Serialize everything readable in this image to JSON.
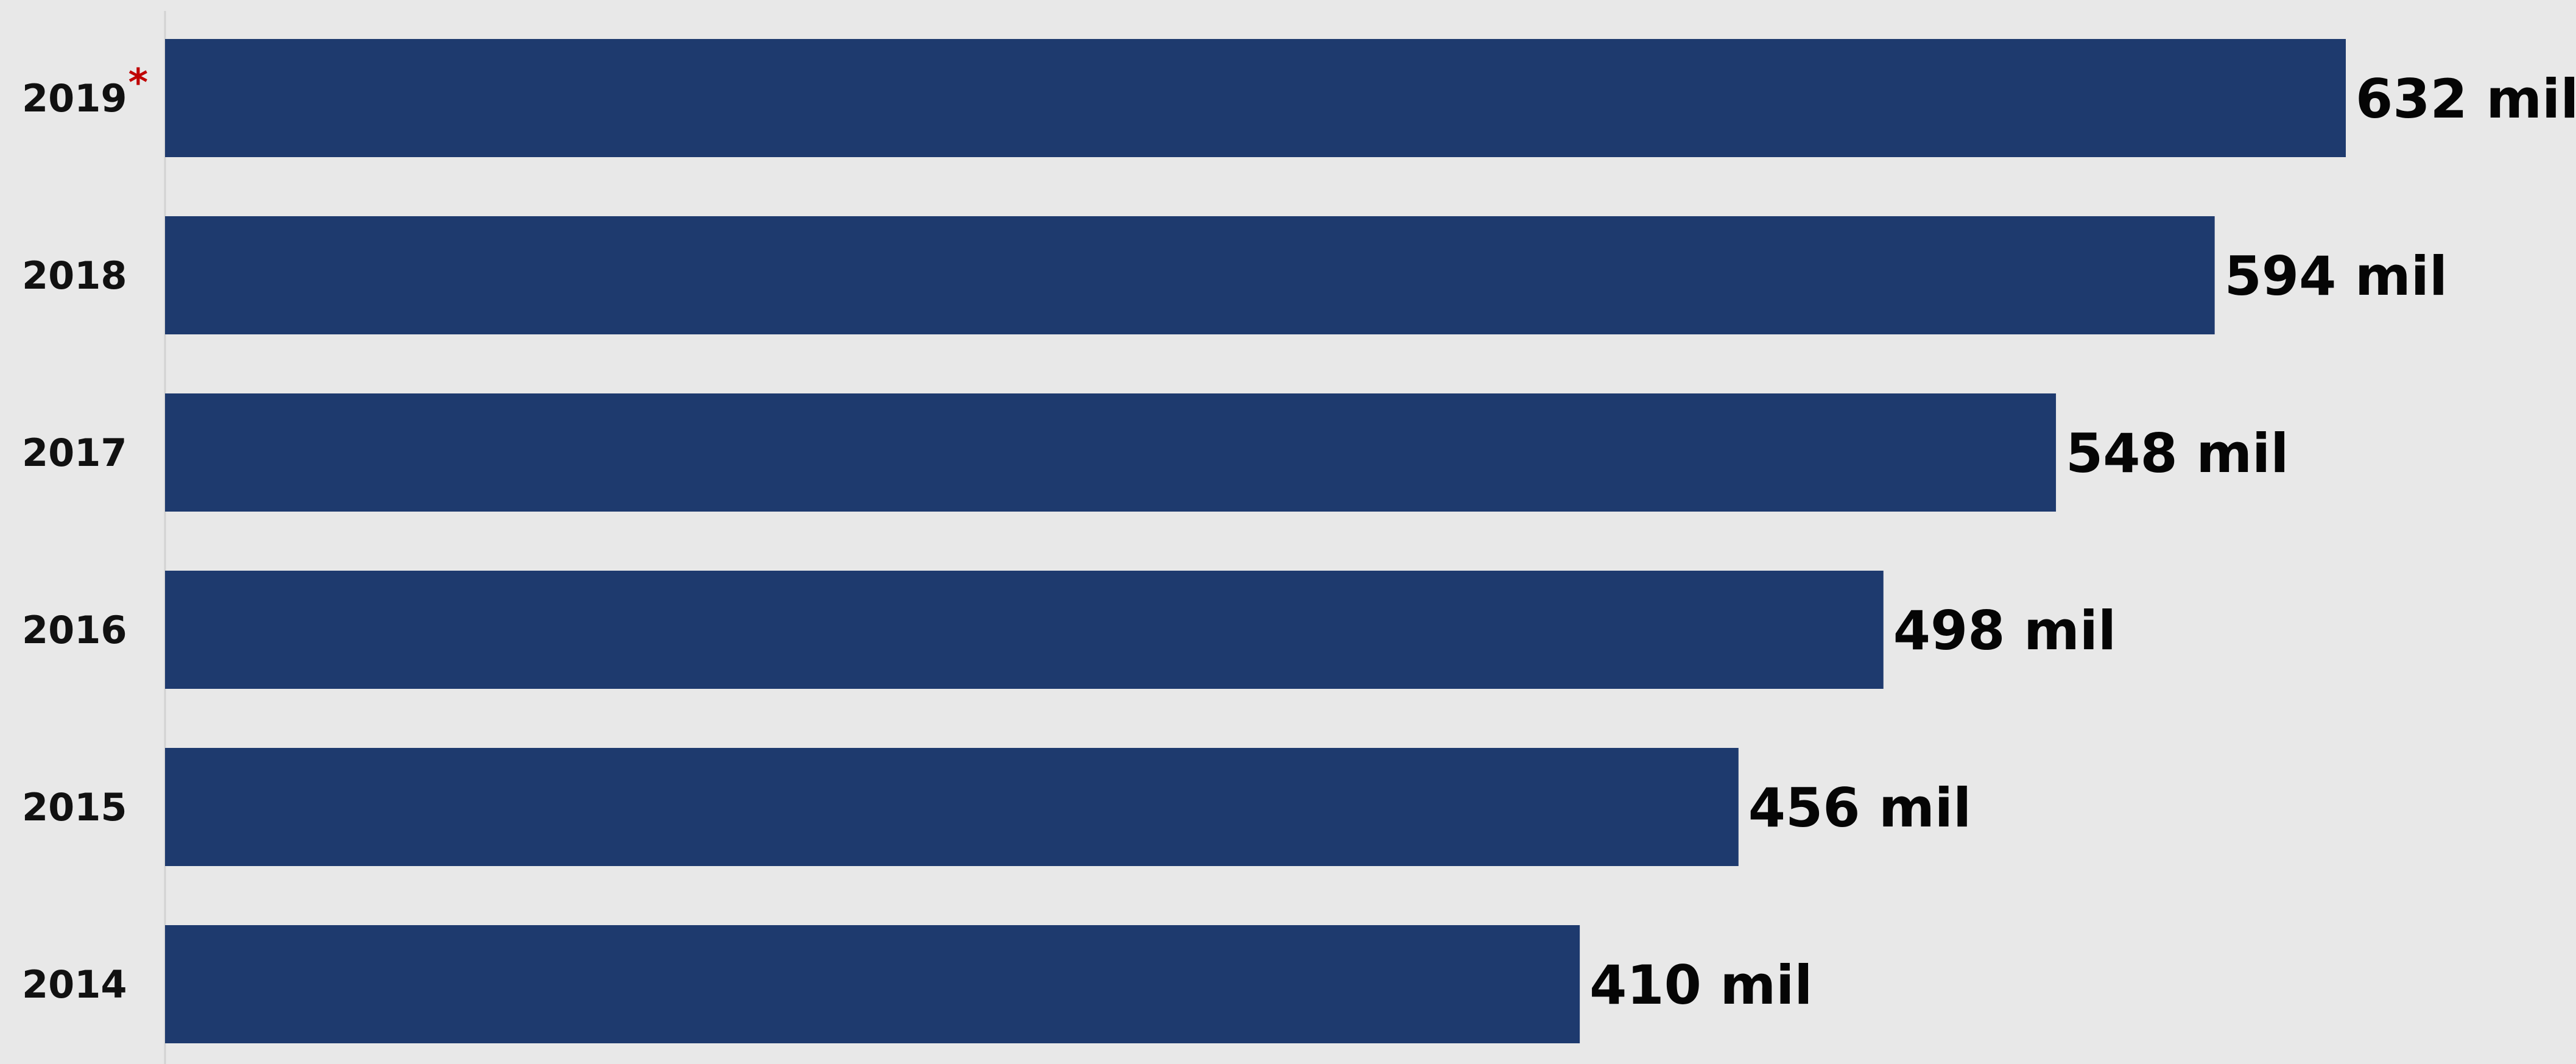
{
  "chart_data": {
    "type": "bar",
    "orientation": "horizontal",
    "categories": [
      "2019",
      "2018",
      "2017",
      "2016",
      "2015",
      "2014"
    ],
    "category_markers": [
      "*",
      "",
      "",
      "",
      "",
      ""
    ],
    "values": [
      632,
      594,
      548,
      498,
      456,
      410
    ],
    "data_labels": [
      "632 mil",
      "594 mil",
      "548 mil",
      "498 mil",
      "456 mil",
      "410 mil"
    ],
    "xlim": [
      0,
      632
    ],
    "title": "",
    "xlabel": "",
    "ylabel": "",
    "grid": false,
    "legend": "none"
  },
  "colors": {
    "background": "#e8e8e8",
    "bar": "#1e3a6e",
    "axis_line": "#d2d2d2",
    "label_text": "#111111",
    "value_text": "#050505",
    "marker": "#c00000"
  }
}
